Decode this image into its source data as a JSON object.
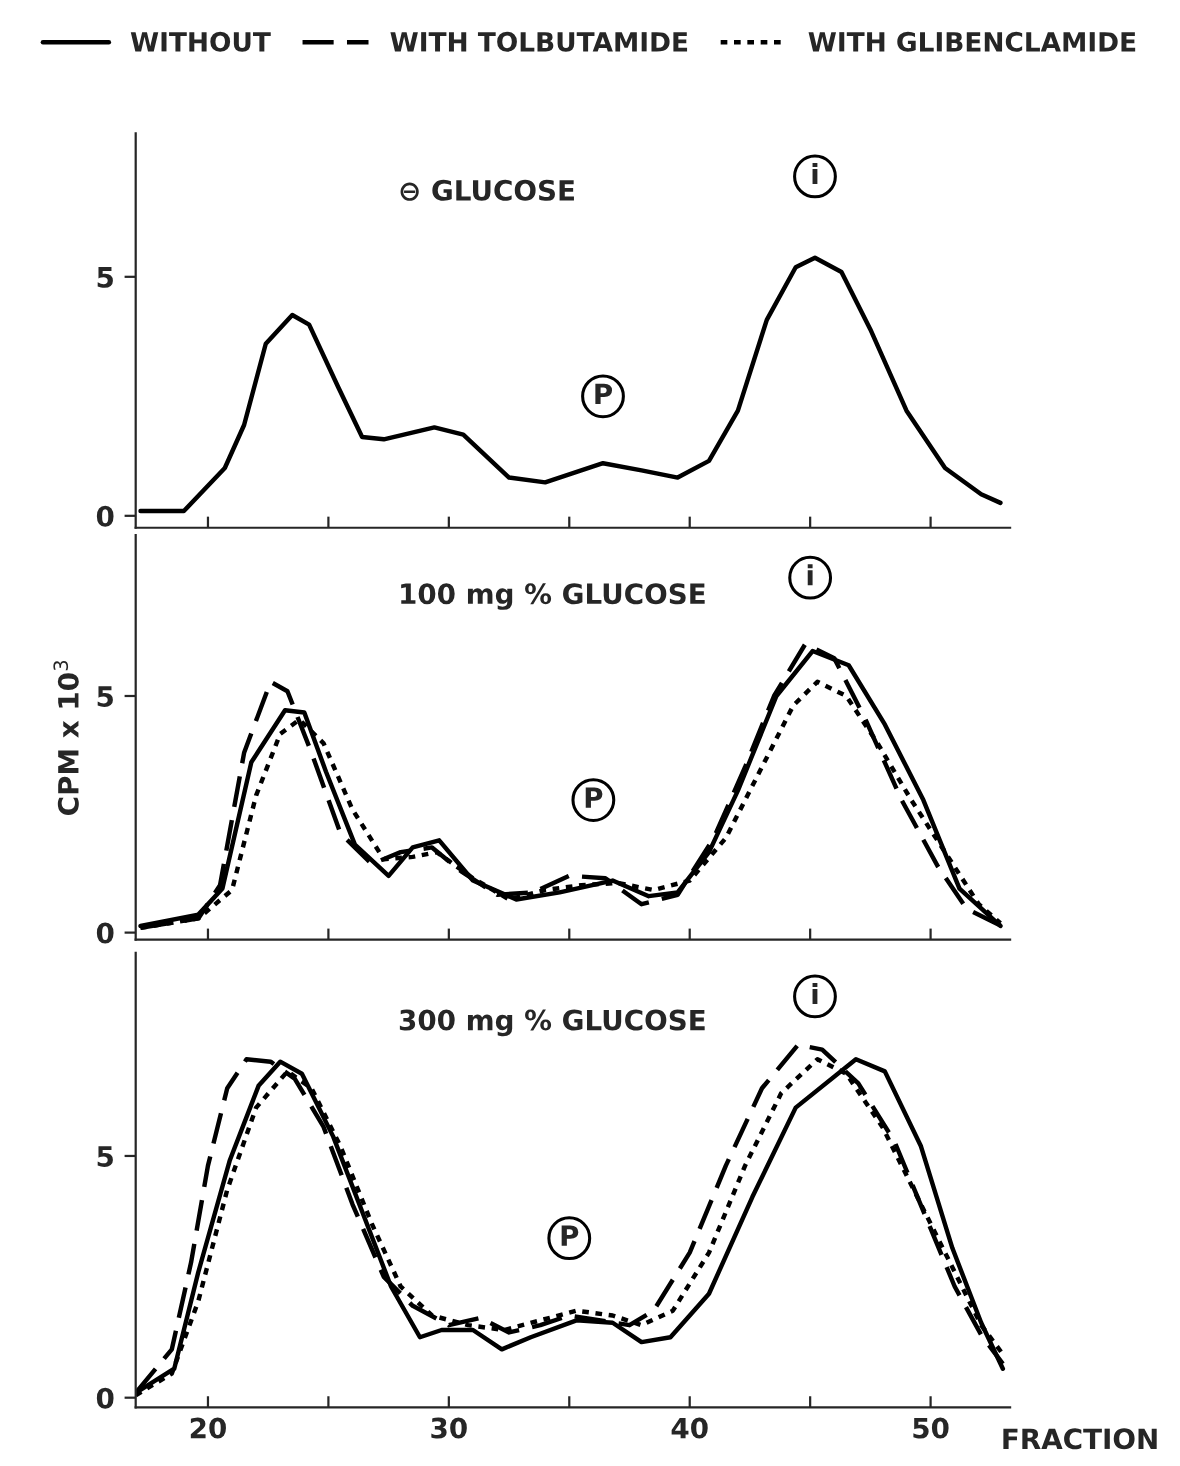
{
  "chart_data": [
    {
      "type": "line",
      "title": "⊖ GLUCOSE",
      "xlim": [
        17,
        53.3
      ],
      "ylim": [
        -0.25,
        8
      ],
      "xticks": [
        {
          "value": 20,
          "label": null
        },
        {
          "value": 25,
          "label": null
        },
        {
          "value": 30,
          "label": null
        },
        {
          "value": 35,
          "label": null
        },
        {
          "value": 40,
          "label": null
        },
        {
          "value": 45,
          "label": null
        },
        {
          "value": 50,
          "label": null
        }
      ],
      "yticks": [
        0,
        5
      ],
      "tick_labels": "y",
      "grid": false,
      "legend": false,
      "annotations": [
        {
          "text": "P",
          "x": 36.4,
          "y": 2.5
        },
        {
          "text": "i",
          "x": 45.2,
          "y": 7.1
        }
      ],
      "series": [
        {
          "color": "#000000",
          "line_style": "solid",
          "x": [
            17.2,
            19.0,
            20.7,
            21.5,
            22.4,
            23.5,
            24.2,
            25.4,
            26.4,
            27.3,
            29.4,
            30.6,
            32.5,
            34.0,
            36.4,
            38.0,
            39.5,
            40.8,
            42.0,
            43.2,
            44.4,
            45.2,
            46.3,
            47.5,
            49.0,
            50.6,
            52.1,
            52.9
          ],
          "values": [
            0.1,
            0.1,
            1.0,
            1.9,
            3.6,
            4.2,
            4.0,
            2.7,
            1.65,
            1.6,
            1.85,
            1.7,
            0.8,
            0.7,
            1.1,
            0.95,
            0.8,
            1.15,
            2.2,
            4.1,
            5.2,
            5.4,
            5.1,
            3.9,
            2.2,
            1.0,
            0.45,
            0.27
          ]
        }
      ]
    },
    {
      "type": "line",
      "title": "100 mg % GLUCOSE",
      "ylabel": "CPM x 10$^{3}$",
      "xlim": [
        17,
        53.3
      ],
      "ylim": [
        -0.15,
        8.4
      ],
      "xticks": [
        {
          "value": 20,
          "label": null
        },
        {
          "value": 25,
          "label": null
        },
        {
          "value": 30,
          "label": null
        },
        {
          "value": 35,
          "label": null
        },
        {
          "value": 40,
          "label": null
        },
        {
          "value": 45,
          "label": null
        },
        {
          "value": 50,
          "label": null
        }
      ],
      "yticks": [
        0,
        5
      ],
      "tick_labels": "y",
      "grid": false,
      "legend": "top",
      "annotations": [
        {
          "text": "P",
          "x": 36.0,
          "y": 2.8
        },
        {
          "text": "i",
          "x": 45.0,
          "y": 7.5
        }
      ],
      "series": [
        {
          "name": "WITHOUT",
          "color": "#000000",
          "line_style": "solid",
          "x": [
            17.2,
            19.6,
            20.6,
            21.8,
            23.2,
            24.0,
            24.9,
            26.1,
            27.5,
            28.5,
            29.6,
            31.0,
            32.8,
            34.6,
            36.8,
            38.3,
            39.5,
            40.8,
            42.0,
            43.6,
            45.1,
            46.6,
            48.1,
            49.7,
            51.2,
            52.9
          ],
          "values": [
            0.14,
            0.38,
            0.93,
            3.6,
            4.7,
            4.65,
            3.4,
            1.86,
            1.2,
            1.8,
            1.95,
            1.1,
            0.7,
            0.85,
            1.1,
            0.77,
            0.85,
            1.7,
            3.0,
            5.0,
            5.95,
            5.65,
            4.4,
            2.8,
            0.93,
            0.14
          ]
        },
        {
          "name": "WITH TOLBUTAMIDE",
          "color": "#000000",
          "line_style": "dashed",
          "x": [
            17.2,
            19.6,
            20.5,
            21.5,
            22.6,
            23.3,
            24.3,
            25.5,
            26.8,
            28.0,
            29.3,
            30.5,
            32.0,
            33.5,
            35.0,
            36.5,
            38.0,
            39.5,
            41.0,
            42.3,
            43.5,
            44.8,
            46.0,
            47.3,
            48.8,
            50.3,
            51.5,
            52.9
          ],
          "values": [
            0.1,
            0.3,
            1.0,
            3.8,
            5.3,
            5.1,
            3.8,
            2.1,
            1.45,
            1.7,
            1.8,
            1.3,
            0.8,
            0.85,
            1.2,
            1.15,
            0.6,
            0.8,
            2.0,
            3.5,
            5.0,
            6.1,
            5.8,
            4.5,
            2.8,
            1.4,
            0.5,
            0.15
          ]
        },
        {
          "name": "WITH GLIBENCLAMIDE",
          "color": "#000000",
          "line_style": "dotted",
          "x": [
            17.2,
            19.6,
            21.0,
            22.0,
            23.0,
            23.8,
            24.8,
            26.0,
            27.3,
            28.5,
            29.5,
            31.0,
            32.5,
            34.0,
            35.5,
            37.0,
            38.5,
            40.0,
            41.5,
            43.0,
            44.3,
            45.3,
            46.5,
            47.8,
            49.2,
            50.6,
            52.0,
            52.9
          ],
          "values": [
            0.1,
            0.3,
            0.9,
            2.9,
            4.2,
            4.5,
            4.0,
            2.6,
            1.55,
            1.6,
            1.7,
            1.15,
            0.7,
            0.9,
            1.0,
            1.05,
            0.9,
            1.1,
            2.0,
            3.5,
            4.8,
            5.3,
            5.0,
            4.0,
            2.8,
            1.7,
            0.6,
            0.2
          ]
        }
      ]
    },
    {
      "type": "line",
      "title": "300 mg % GLUCOSE",
      "xlabel": "FRACTION",
      "xlim": [
        17,
        53.3
      ],
      "ylim": [
        -0.2,
        9.2
      ],
      "xticks": [
        20,
        {
          "value": 25,
          "label": null
        },
        30,
        {
          "value": 35,
          "label": null
        },
        40,
        {
          "value": 45,
          "label": null
        },
        50
      ],
      "yticks": [
        0,
        5
      ],
      "grid": false,
      "legend": false,
      "annotations": [
        {
          "text": "P",
          "x": 35.0,
          "y": 3.3
        },
        {
          "text": "i",
          "x": 45.2,
          "y": 8.3
        }
      ],
      "series": [
        {
          "color": "#000000",
          "line_style": "solid",
          "x": [
            17.0,
            18.6,
            19.6,
            20.9,
            22.1,
            23.0,
            23.9,
            25.2,
            26.4,
            27.6,
            28.8,
            29.7,
            31.0,
            32.2,
            33.4,
            35.3,
            36.8,
            38.0,
            39.2,
            40.8,
            42.6,
            44.4,
            46.9,
            48.1,
            49.6,
            50.9,
            52.1,
            53.0
          ],
          "values": [
            0.1,
            0.6,
            2.6,
            4.9,
            6.45,
            6.95,
            6.7,
            5.4,
            3.85,
            2.3,
            1.25,
            1.4,
            1.4,
            1.0,
            1.25,
            1.6,
            1.55,
            1.15,
            1.25,
            2.15,
            4.15,
            6.0,
            7.0,
            6.75,
            5.2,
            3.1,
            1.55,
            0.6
          ]
        },
        {
          "color": "#000000",
          "line_style": "dashed",
          "x": [
            17.0,
            18.5,
            19.3,
            20.0,
            20.8,
            21.6,
            22.6,
            23.6,
            24.8,
            26.0,
            27.3,
            28.5,
            30.0,
            31.3,
            32.5,
            33.8,
            35.0,
            36.3,
            37.5,
            38.5,
            40.0,
            41.5,
            43.0,
            44.5,
            45.5,
            47.0,
            48.5,
            50.0,
            51.0,
            52.1,
            53.0
          ],
          "values": [
            0.1,
            1.0,
            2.8,
            4.8,
            6.4,
            7.0,
            6.95,
            6.6,
            5.6,
            4.0,
            2.5,
            1.9,
            1.5,
            1.65,
            1.35,
            1.5,
            1.7,
            1.6,
            1.5,
            1.8,
            3.0,
            4.8,
            6.4,
            7.3,
            7.2,
            6.5,
            5.3,
            3.5,
            2.3,
            1.3,
            0.7
          ]
        },
        {
          "color": "#000000",
          "line_style": "dotted",
          "x": [
            17.0,
            18.5,
            19.6,
            20.8,
            22.0,
            23.3,
            24.3,
            25.5,
            26.8,
            28.0,
            29.3,
            30.8,
            32.3,
            33.8,
            35.3,
            36.8,
            38.0,
            39.3,
            40.8,
            42.3,
            43.8,
            45.3,
            46.5,
            48.0,
            49.5,
            51.0,
            52.1,
            53.0
          ],
          "values": [
            0.05,
            0.5,
            2.0,
            4.3,
            6.0,
            6.75,
            6.4,
            5.2,
            3.6,
            2.3,
            1.7,
            1.5,
            1.4,
            1.6,
            1.8,
            1.7,
            1.5,
            1.8,
            3.0,
            4.8,
            6.3,
            7.0,
            6.7,
            5.6,
            4.1,
            2.6,
            1.5,
            0.9
          ]
        }
      ]
    }
  ]
}
